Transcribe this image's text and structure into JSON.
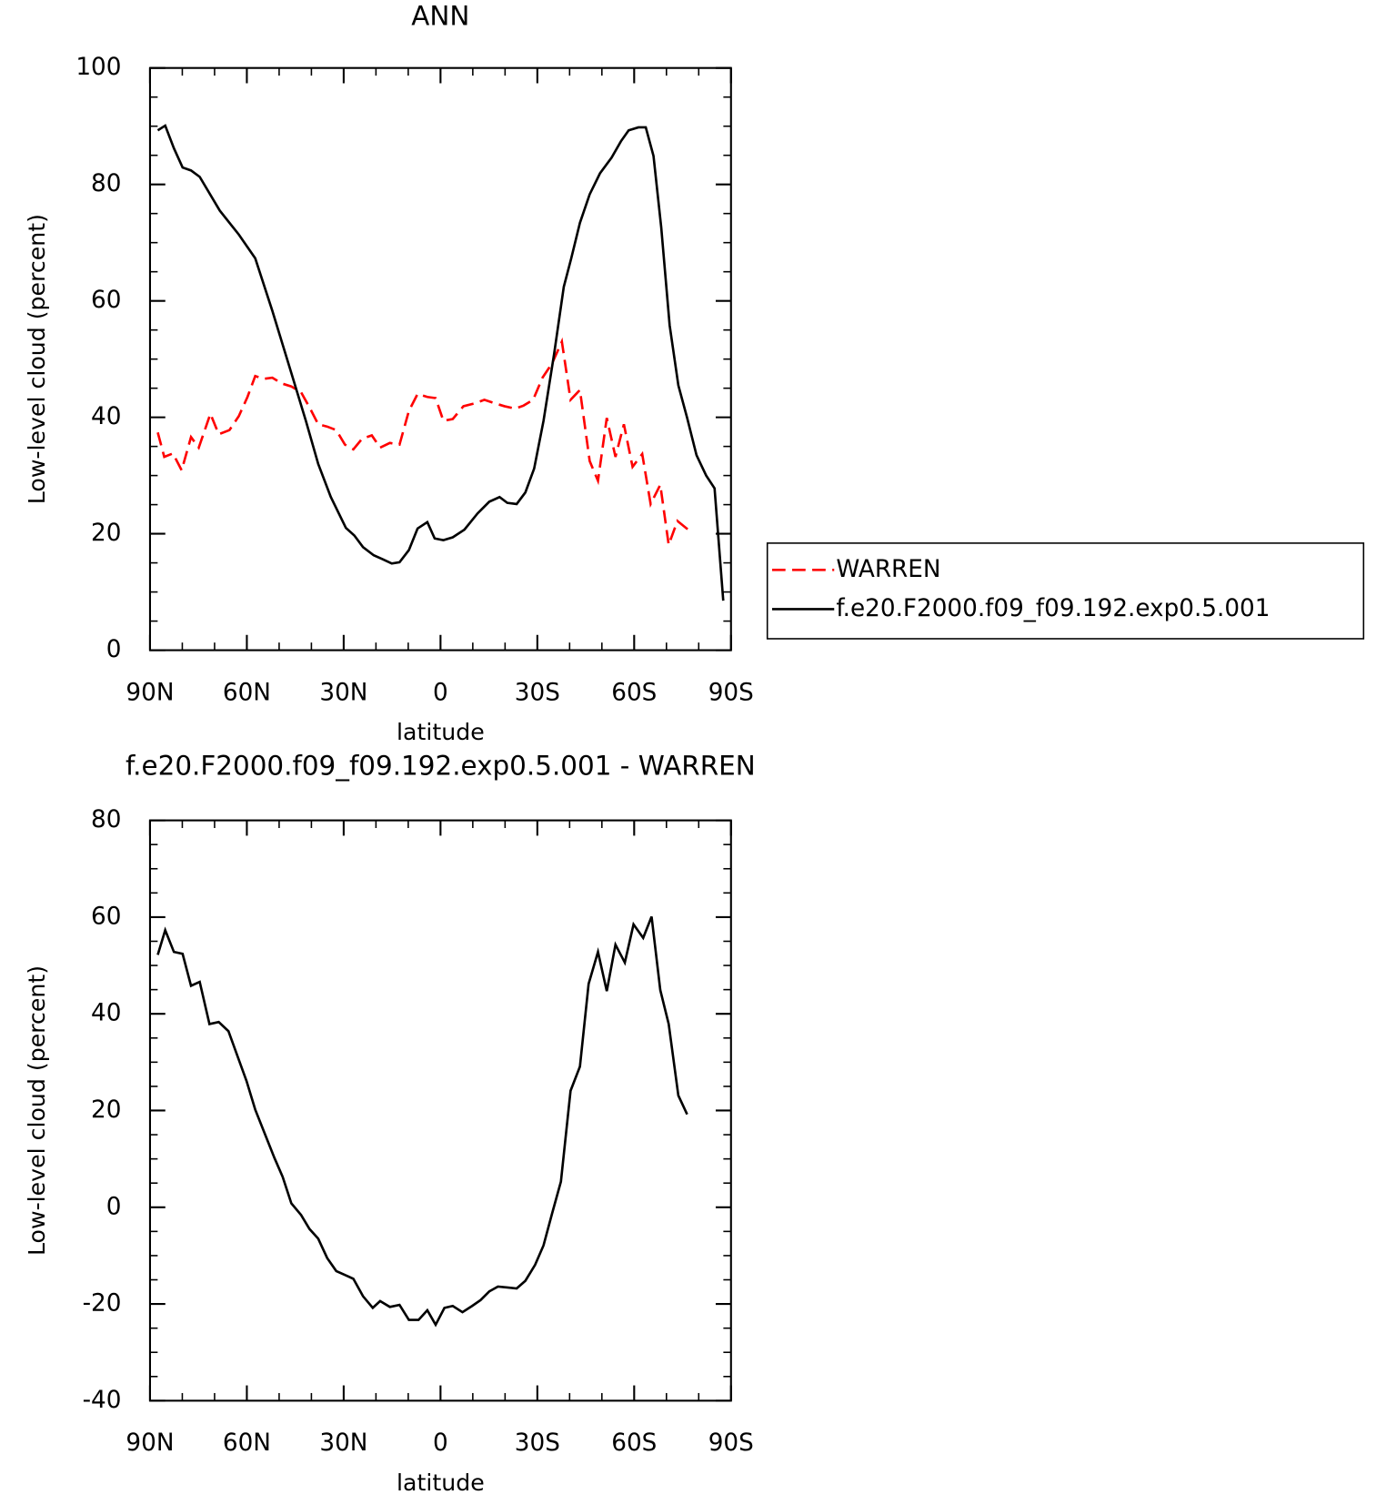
{
  "chart_data": [
    {
      "type": "line",
      "title": "ANN",
      "xlabel": "latitude",
      "ylabel": "Low-level cloud (percent)",
      "xlim": [
        90,
        -90
      ],
      "xticks": [
        {
          "value": 90,
          "label": "90N"
        },
        {
          "value": 60,
          "label": "60N"
        },
        {
          "value": 30,
          "label": "30N"
        },
        0,
        {
          "value": -30,
          "label": "30S"
        },
        {
          "value": -60,
          "label": "60S"
        },
        {
          "value": -90,
          "label": "90S"
        }
      ],
      "ylim": [
        0,
        100
      ],
      "yticks": [
        0,
        20,
        40,
        60,
        80,
        100
      ],
      "series": [
        {
          "name": "WARREN",
          "color": "#ff0000",
          "line_style": "dashed",
          "x": [
            87.6,
            85.6,
            82.9,
            80.2,
            77.3,
            74.9,
            71.3,
            68.7,
            65.4,
            62.5,
            59.8,
            57.4,
            54.8,
            52.1,
            49.1,
            46.2,
            43.2,
            40.6,
            37.9,
            35.1,
            32.3,
            29.6,
            27.0,
            24.3,
            21.3,
            18.7,
            15.7,
            12.7,
            9.8,
            7.1,
            4.1,
            1.5,
            -0.9,
            -3.8,
            -7.1,
            -10.6,
            -13.6,
            -16.9,
            -19.8,
            -23.1,
            -25.7,
            -28.7,
            -31.6,
            -34.6,
            -37.6,
            -40.3,
            -43.2,
            -46.2,
            -48.8,
            -51.5,
            -54.2,
            -56.8,
            -59.5,
            -62.5,
            -65.1,
            -68.1,
            -70.7,
            -73.4,
            -76.7
          ],
          "values": [
            37.4,
            33.2,
            33.8,
            30.9,
            36.6,
            34.8,
            40.6,
            37.1,
            37.8,
            40.2,
            43.5,
            47.1,
            46.6,
            46.8,
            45.8,
            45.3,
            44.3,
            41.7,
            38.8,
            38.4,
            37.8,
            35.3,
            34.5,
            36.3,
            36.9,
            34.8,
            35.6,
            35.3,
            41.1,
            44.0,
            43.5,
            43.3,
            39.4,
            39.7,
            41.9,
            42.4,
            43.0,
            42.4,
            41.9,
            41.5,
            42.0,
            43.0,
            46.8,
            49.3,
            53.0,
            43.0,
            44.7,
            32.5,
            29.1,
            39.9,
            33.2,
            38.8,
            31.5,
            33.7,
            25.1,
            28.4,
            18.1,
            22.2,
            20.7
          ]
        },
        {
          "name": "f.e20.F2000.f09_f09.192.exp0.5.001",
          "color": "#000000",
          "line_style": "solid",
          "x": [
            87.6,
            85.3,
            82.6,
            79.9,
            77.3,
            74.6,
            68.4,
            62.5,
            57.4,
            52.1,
            46.2,
            41.7,
            37.9,
            34.0,
            29.3,
            26.7,
            24.0,
            20.7,
            17.8,
            15.1,
            12.7,
            9.8,
            7.1,
            4.1,
            1.8,
            -0.9,
            -3.8,
            -7.4,
            -11.5,
            -15.1,
            -18.3,
            -20.7,
            -23.6,
            -26.3,
            -29.0,
            -31.9,
            -35.2,
            -38.2,
            -40.5,
            -43.2,
            -46.2,
            -49.4,
            -53.0,
            -55.9,
            -58.3,
            -61.3,
            -63.6,
            -66.0,
            -68.4,
            -71.0,
            -73.7,
            -76.4,
            -79.3,
            -82.3,
            -84.9,
            -87.6
          ],
          "values": [
            89.3,
            90.1,
            86.2,
            82.9,
            82.4,
            81.3,
            75.5,
            71.4,
            67.3,
            58.3,
            47.6,
            39.4,
            32.0,
            26.3,
            21.0,
            19.7,
            17.7,
            16.3,
            15.6,
            14.9,
            15.1,
            17.2,
            20.9,
            22.0,
            19.2,
            18.9,
            19.4,
            20.7,
            23.5,
            25.5,
            26.3,
            25.3,
            25.1,
            27.1,
            31.2,
            39.4,
            50.9,
            62.4,
            67.3,
            73.4,
            78.3,
            81.9,
            84.6,
            87.4,
            89.3,
            89.8,
            89.8,
            84.9,
            72.6,
            55.8,
            45.5,
            39.9,
            33.5,
            30.0,
            27.8,
            8.5
          ]
        }
      ]
    },
    {
      "type": "line",
      "title": "f.e20.F2000.f09_f09.192.exp0.5.001 - WARREN",
      "xlabel": "latitude",
      "ylabel": "Low-level cloud (percent)",
      "xlim": [
        90,
        -90
      ],
      "xticks": [
        {
          "value": 90,
          "label": "90N"
        },
        {
          "value": 60,
          "label": "60N"
        },
        {
          "value": 30,
          "label": "30N"
        },
        0,
        {
          "value": -30,
          "label": "30S"
        },
        {
          "value": -60,
          "label": "60S"
        },
        {
          "value": -90,
          "label": "90S"
        }
      ],
      "ylim": [
        -40,
        80
      ],
      "yticks": [
        -40,
        -20,
        0,
        20,
        40,
        60,
        80
      ],
      "color": "#000000",
      "x": [
        87.6,
        85.3,
        82.6,
        79.9,
        77.3,
        74.6,
        71.6,
        68.7,
        65.7,
        63.1,
        60.1,
        57.4,
        54.8,
        51.5,
        48.9,
        46.2,
        43.2,
        40.6,
        37.9,
        35.1,
        32.3,
        29.6,
        27.0,
        24.0,
        21.0,
        18.7,
        15.7,
        12.7,
        9.8,
        6.8,
        4.1,
        1.5,
        -1.2,
        -3.8,
        -6.8,
        -9.8,
        -12.4,
        -15.1,
        -17.8,
        -20.7,
        -23.6,
        -26.3,
        -29.3,
        -31.9,
        -34.6,
        -37.3,
        -40.3,
        -43.2,
        -45.9,
        -48.8,
        -51.5,
        -54.2,
        -57.1,
        -59.8,
        -62.8,
        -65.4,
        -68.1,
        -70.7,
        -73.7,
        -76.4
      ],
      "values": [
        52.2,
        57.3,
        52.8,
        52.4,
        45.8,
        46.6,
        37.9,
        38.3,
        36.4,
        31.6,
        26.1,
        20.2,
        15.8,
        10.3,
        6.3,
        0.8,
        -1.6,
        -4.5,
        -6.5,
        -10.5,
        -13.2,
        -14.0,
        -14.8,
        -18.4,
        -20.8,
        -19.4,
        -20.6,
        -20.2,
        -23.3,
        -23.3,
        -21.3,
        -24.3,
        -20.8,
        -20.4,
        -21.7,
        -20.4,
        -19.2,
        -17.4,
        -16.4,
        -16.6,
        -16.8,
        -15.2,
        -11.9,
        -7.9,
        -1.2,
        5.3,
        24.1,
        29.1,
        46.2,
        52.8,
        44.7,
        54.3,
        50.6,
        58.5,
        55.7,
        60.1,
        44.9,
        37.9,
        23.1,
        19.2
      ]
    }
  ]
}
